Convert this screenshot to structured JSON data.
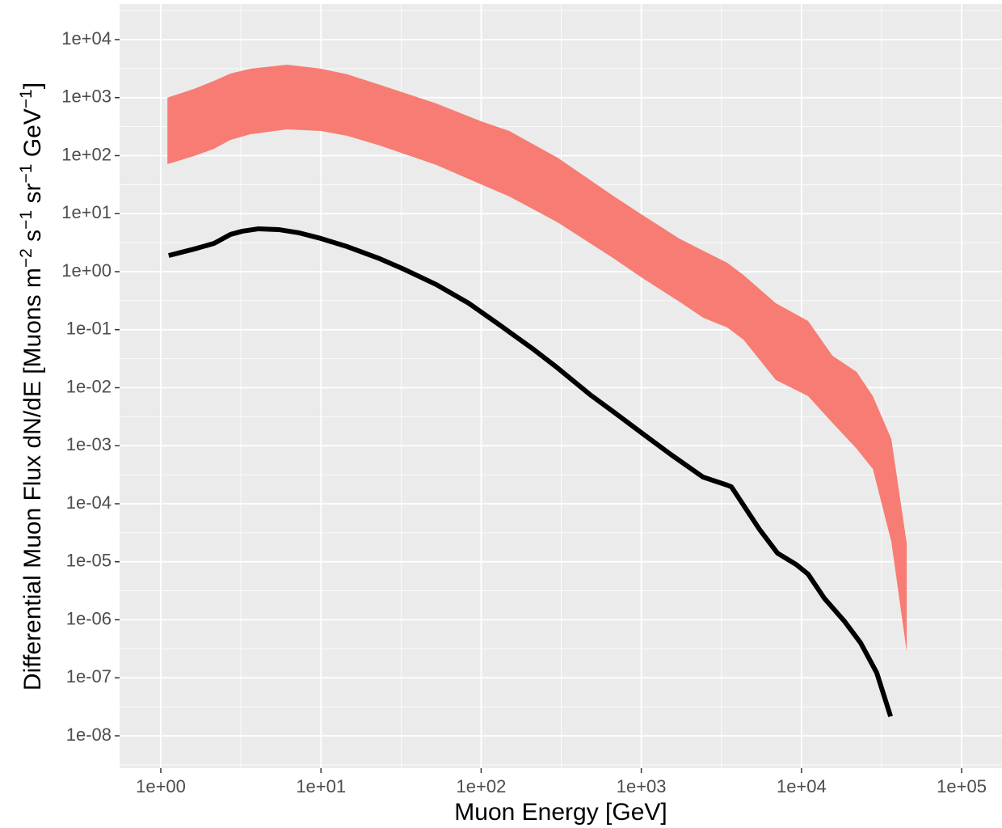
{
  "chart_data": {
    "type": "line",
    "xlabel": "Muon Energy [GeV]",
    "ylabel_parts": [
      "Differential Muon Flux dN/dE [Muons m",
      "−2",
      " s",
      "−1",
      " sr",
      "−1",
      " GeV",
      "−1",
      "]"
    ],
    "log_x": true,
    "log_y": true,
    "grid": true,
    "xlim": [
      0.553,
      178600
    ],
    "ylim": [
      2.77e-09,
      41000
    ],
    "xticks": [
      {
        "value": 1,
        "label": "1e+00"
      },
      {
        "value": 10,
        "label": "1e+01"
      },
      {
        "value": 100,
        "label": "1e+02"
      },
      {
        "value": 1000,
        "label": "1e+03"
      },
      {
        "value": 10000,
        "label": "1e+04"
      },
      {
        "value": 100000,
        "label": "1e+05"
      }
    ],
    "yticks": [
      {
        "value": 1e-08,
        "label": "1e-08"
      },
      {
        "value": 1e-07,
        "label": "1e-07"
      },
      {
        "value": 1e-06,
        "label": "1e-06"
      },
      {
        "value": 1e-05,
        "label": "1e-05"
      },
      {
        "value": 0.0001,
        "label": "1e-04"
      },
      {
        "value": 0.001,
        "label": "1e-03"
      },
      {
        "value": 0.01,
        "label": "1e-02"
      },
      {
        "value": 0.1,
        "label": "1e-01"
      },
      {
        "value": 1,
        "label": "1e+00"
      },
      {
        "value": 10,
        "label": "1e+01"
      },
      {
        "value": 100,
        "label": "1e+02"
      },
      {
        "value": 1000,
        "label": "1e+03"
      },
      {
        "value": 10000,
        "label": "1e+04"
      }
    ],
    "ribbon": {
      "color": "#f8766d",
      "x": [
        1.1,
        1.61,
        2.15,
        2.72,
        3.63,
        6.12,
        10,
        14.6,
        23.3,
        52.5,
        100,
        150,
        300,
        677,
        1000,
        1725,
        2430,
        3440,
        4340,
        6910,
        11000,
        15600,
        22100,
        27900,
        36400,
        45400
      ],
      "upper": [
        1000,
        1413,
        1946,
        2600,
        3150,
        3700,
        3150,
        2520,
        1660,
        793,
        391,
        266,
        92.3,
        19.8,
        9.77,
        3.73,
        2.3,
        1.42,
        0.879,
        0.286,
        0.141,
        0.0356,
        0.0187,
        0.00715,
        0.0013,
        2.07e-05
      ],
      "lower": [
        71.4,
        98.4,
        131,
        187,
        234,
        284,
        266,
        219,
        149,
        69.2,
        32,
        19.8,
        7.08,
        1.67,
        0.798,
        0.305,
        0.161,
        0.109,
        0.0675,
        0.0136,
        0.00715,
        0.00248,
        0.000887,
        0.000397,
        2.21e-05,
        2.81e-07
      ]
    },
    "line": {
      "color": "#000000",
      "x": [
        1.12,
        1.61,
        2.15,
        2.72,
        3.23,
        4.08,
        5.45,
        7.29,
        10,
        14.6,
        23.3,
        33,
        52.5,
        83.6,
        133,
        212,
        300,
        478,
        677,
        1000,
        1527,
        2430,
        3440,
        3650,
        5480,
        7080,
        9250,
        11000,
        13900,
        18500,
        23400,
        29500,
        36000
      ],
      "values": [
        1.9,
        2.45,
        3.07,
        4.38,
        4.98,
        5.48,
        5.31,
        4.67,
        3.73,
        2.7,
        1.67,
        1.1,
        0.599,
        0.286,
        0.116,
        0.0459,
        0.0219,
        0.00761,
        0.00376,
        0.00168,
        0.000708,
        0.000288,
        0.000209,
        0.000196,
        3.58e-05,
        1.41e-05,
        9e-06,
        6.12e-06,
        2.34e-06,
        9.5e-07,
        4e-07,
        1.22e-07,
        2.16e-08
      ]
    }
  }
}
